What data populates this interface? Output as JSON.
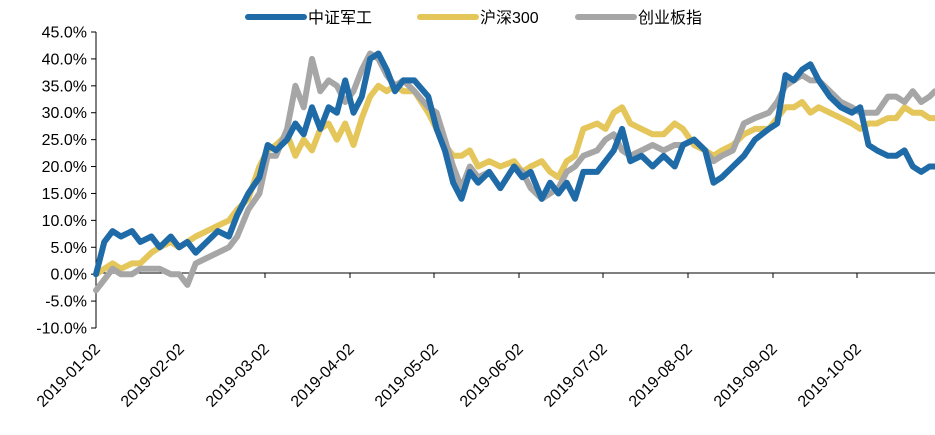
{
  "chart_data": {
    "type": "line",
    "title": "",
    "xlabel": "",
    "ylabel": "",
    "x_tick_labels": [
      "2019-01-02",
      "2019-02-02",
      "2019-03-02",
      "2019-04-02",
      "2019-05-02",
      "2019-06-02",
      "2019-07-02",
      "2019-08-02",
      "2019-09-02",
      "2019-10-02"
    ],
    "y_tick_labels": [
      "45.0%",
      "40.0%",
      "35.0%",
      "30.0%",
      "25.0%",
      "20.0%",
      "15.0%",
      "10.0%",
      "5.0%",
      "0.0%",
      "-5.0%",
      "-10.0%"
    ],
    "ylim": [
      -10,
      45
    ],
    "y_unit": "%",
    "grid": false,
    "legend_position": "top-center",
    "series": [
      {
        "name": "中证军工",
        "color": "#1F6BA8",
        "points": [
          [
            "2019-01-02",
            0
          ],
          [
            "2019-01-05",
            6
          ],
          [
            "2019-01-08",
            8
          ],
          [
            "2019-01-11",
            7
          ],
          [
            "2019-01-15",
            8
          ],
          [
            "2019-01-18",
            6
          ],
          [
            "2019-01-22",
            7
          ],
          [
            "2019-01-25",
            5
          ],
          [
            "2019-01-29",
            7
          ],
          [
            "2019-02-01",
            5
          ],
          [
            "2019-02-04",
            6
          ],
          [
            "2019-02-07",
            4
          ],
          [
            "2019-02-11",
            6
          ],
          [
            "2019-02-15",
            8
          ],
          [
            "2019-02-19",
            7
          ],
          [
            "2019-02-22",
            11
          ],
          [
            "2019-02-26",
            15
          ],
          [
            "2019-03-02",
            18
          ],
          [
            "2019-03-05",
            24
          ],
          [
            "2019-03-08",
            23
          ],
          [
            "2019-03-12",
            25
          ],
          [
            "2019-03-15",
            28
          ],
          [
            "2019-03-18",
            26
          ],
          [
            "2019-03-21",
            31
          ],
          [
            "2019-03-24",
            27
          ],
          [
            "2019-03-27",
            31
          ],
          [
            "2019-03-30",
            30
          ],
          [
            "2019-04-02",
            36
          ],
          [
            "2019-04-05",
            30
          ],
          [
            "2019-04-08",
            33
          ],
          [
            "2019-04-11",
            40
          ],
          [
            "2019-04-14",
            41
          ],
          [
            "2019-04-17",
            38
          ],
          [
            "2019-04-20",
            34
          ],
          [
            "2019-04-23",
            36
          ],
          [
            "2019-04-27",
            36
          ],
          [
            "2019-05-02",
            33
          ],
          [
            "2019-05-05",
            27
          ],
          [
            "2019-05-08",
            23
          ],
          [
            "2019-05-11",
            17
          ],
          [
            "2019-05-14",
            14
          ],
          [
            "2019-05-17",
            19
          ],
          [
            "2019-05-20",
            17
          ],
          [
            "2019-05-24",
            19
          ],
          [
            "2019-05-28",
            16
          ],
          [
            "2019-06-02",
            20
          ],
          [
            "2019-06-05",
            18
          ],
          [
            "2019-06-08",
            19
          ],
          [
            "2019-06-12",
            14
          ],
          [
            "2019-06-15",
            17
          ],
          [
            "2019-06-18",
            15
          ],
          [
            "2019-06-21",
            17
          ],
          [
            "2019-06-24",
            14
          ],
          [
            "2019-06-27",
            19
          ],
          [
            "2019-07-02",
            19
          ],
          [
            "2019-07-05",
            21
          ],
          [
            "2019-07-08",
            23
          ],
          [
            "2019-07-11",
            27
          ],
          [
            "2019-07-14",
            21
          ],
          [
            "2019-07-18",
            22
          ],
          [
            "2019-07-22",
            20
          ],
          [
            "2019-07-26",
            22
          ],
          [
            "2019-07-30",
            20
          ],
          [
            "2019-08-02",
            24
          ],
          [
            "2019-08-06",
            25
          ],
          [
            "2019-08-10",
            23
          ],
          [
            "2019-08-13",
            17
          ],
          [
            "2019-08-16",
            18
          ],
          [
            "2019-08-20",
            20
          ],
          [
            "2019-08-24",
            22
          ],
          [
            "2019-08-28",
            25
          ],
          [
            "2019-09-02",
            27
          ],
          [
            "2019-09-05",
            28
          ],
          [
            "2019-09-08",
            37
          ],
          [
            "2019-09-11",
            36
          ],
          [
            "2019-09-14",
            38
          ],
          [
            "2019-09-17",
            39
          ],
          [
            "2019-09-20",
            36
          ],
          [
            "2019-09-24",
            33
          ],
          [
            "2019-09-28",
            31
          ],
          [
            "2019-10-02",
            30
          ],
          [
            "2019-10-05",
            31
          ],
          [
            "2019-10-08",
            24
          ],
          [
            "2019-10-11",
            23
          ],
          [
            "2019-10-15",
            22
          ],
          [
            "2019-10-18",
            22
          ],
          [
            "2019-10-21",
            23
          ],
          [
            "2019-10-24",
            20
          ],
          [
            "2019-10-27",
            19
          ],
          [
            "2019-10-30",
            20
          ],
          [
            "2019-11-01",
            20
          ]
        ]
      },
      {
        "name": "沪深300",
        "color": "#E4C65B",
        "points": [
          [
            "2019-01-02",
            0
          ],
          [
            "2019-01-05",
            1
          ],
          [
            "2019-01-08",
            2
          ],
          [
            "2019-01-11",
            1
          ],
          [
            "2019-01-15",
            2
          ],
          [
            "2019-01-18",
            2
          ],
          [
            "2019-01-22",
            4
          ],
          [
            "2019-01-25",
            5
          ],
          [
            "2019-01-29",
            6
          ],
          [
            "2019-02-01",
            5
          ],
          [
            "2019-02-04",
            6
          ],
          [
            "2019-02-07",
            7
          ],
          [
            "2019-02-11",
            8
          ],
          [
            "2019-02-15",
            9
          ],
          [
            "2019-02-19",
            10
          ],
          [
            "2019-02-22",
            12
          ],
          [
            "2019-02-26",
            14
          ],
          [
            "2019-03-02",
            20
          ],
          [
            "2019-03-05",
            23
          ],
          [
            "2019-03-08",
            24
          ],
          [
            "2019-03-12",
            26
          ],
          [
            "2019-03-15",
            22
          ],
          [
            "2019-03-18",
            25
          ],
          [
            "2019-03-21",
            23
          ],
          [
            "2019-03-24",
            27
          ],
          [
            "2019-03-27",
            28
          ],
          [
            "2019-03-30",
            25
          ],
          [
            "2019-04-02",
            28
          ],
          [
            "2019-04-05",
            24
          ],
          [
            "2019-04-08",
            29
          ],
          [
            "2019-04-11",
            33
          ],
          [
            "2019-04-14",
            35
          ],
          [
            "2019-04-17",
            34
          ],
          [
            "2019-04-20",
            35
          ],
          [
            "2019-04-23",
            34
          ],
          [
            "2019-04-27",
            34
          ],
          [
            "2019-05-02",
            30
          ],
          [
            "2019-05-05",
            27
          ],
          [
            "2019-05-08",
            24
          ],
          [
            "2019-05-11",
            22
          ],
          [
            "2019-05-14",
            22
          ],
          [
            "2019-05-17",
            23
          ],
          [
            "2019-05-20",
            20
          ],
          [
            "2019-05-24",
            21
          ],
          [
            "2019-05-28",
            20
          ],
          [
            "2019-06-02",
            21
          ],
          [
            "2019-06-05",
            19
          ],
          [
            "2019-06-08",
            20
          ],
          [
            "2019-06-12",
            21
          ],
          [
            "2019-06-15",
            19
          ],
          [
            "2019-06-18",
            18
          ],
          [
            "2019-06-21",
            21
          ],
          [
            "2019-06-24",
            22
          ],
          [
            "2019-06-27",
            27
          ],
          [
            "2019-07-02",
            28
          ],
          [
            "2019-07-05",
            27
          ],
          [
            "2019-07-08",
            30
          ],
          [
            "2019-07-11",
            31
          ],
          [
            "2019-07-14",
            28
          ],
          [
            "2019-07-18",
            27
          ],
          [
            "2019-07-22",
            26
          ],
          [
            "2019-07-26",
            26
          ],
          [
            "2019-07-30",
            28
          ],
          [
            "2019-08-02",
            27
          ],
          [
            "2019-08-06",
            24
          ],
          [
            "2019-08-10",
            23
          ],
          [
            "2019-08-13",
            22
          ],
          [
            "2019-08-16",
            23
          ],
          [
            "2019-08-20",
            24
          ],
          [
            "2019-08-24",
            26
          ],
          [
            "2019-08-28",
            27
          ],
          [
            "2019-09-02",
            27
          ],
          [
            "2019-09-05",
            29
          ],
          [
            "2019-09-08",
            31
          ],
          [
            "2019-09-11",
            31
          ],
          [
            "2019-09-14",
            32
          ],
          [
            "2019-09-17",
            30
          ],
          [
            "2019-09-20",
            31
          ],
          [
            "2019-09-24",
            30
          ],
          [
            "2019-09-28",
            29
          ],
          [
            "2019-10-02",
            28
          ],
          [
            "2019-10-05",
            27
          ],
          [
            "2019-10-08",
            28
          ],
          [
            "2019-10-11",
            28
          ],
          [
            "2019-10-15",
            29
          ],
          [
            "2019-10-18",
            29
          ],
          [
            "2019-10-21",
            31
          ],
          [
            "2019-10-24",
            30
          ],
          [
            "2019-10-27",
            30
          ],
          [
            "2019-10-30",
            29
          ],
          [
            "2019-11-01",
            29
          ]
        ]
      },
      {
        "name": "创业板指",
        "color": "#A6A6A6",
        "points": [
          [
            "2019-01-02",
            -3
          ],
          [
            "2019-01-05",
            -1
          ],
          [
            "2019-01-08",
            1
          ],
          [
            "2019-01-11",
            0
          ],
          [
            "2019-01-15",
            0
          ],
          [
            "2019-01-18",
            1
          ],
          [
            "2019-01-22",
            1
          ],
          [
            "2019-01-25",
            1
          ],
          [
            "2019-01-29",
            0
          ],
          [
            "2019-02-01",
            0
          ],
          [
            "2019-02-04",
            -2
          ],
          [
            "2019-02-07",
            2
          ],
          [
            "2019-02-11",
            3
          ],
          [
            "2019-02-15",
            4
          ],
          [
            "2019-02-19",
            5
          ],
          [
            "2019-02-22",
            7
          ],
          [
            "2019-02-26",
            12
          ],
          [
            "2019-03-02",
            15
          ],
          [
            "2019-03-05",
            22
          ],
          [
            "2019-03-08",
            22
          ],
          [
            "2019-03-12",
            27
          ],
          [
            "2019-03-15",
            35
          ],
          [
            "2019-03-18",
            31
          ],
          [
            "2019-03-21",
            40
          ],
          [
            "2019-03-24",
            34
          ],
          [
            "2019-03-27",
            36
          ],
          [
            "2019-03-30",
            35
          ],
          [
            "2019-04-02",
            32
          ],
          [
            "2019-04-05",
            34
          ],
          [
            "2019-04-08",
            38
          ],
          [
            "2019-04-11",
            41
          ],
          [
            "2019-04-14",
            40
          ],
          [
            "2019-04-17",
            37
          ],
          [
            "2019-04-20",
            35
          ],
          [
            "2019-04-23",
            36
          ],
          [
            "2019-04-27",
            34
          ],
          [
            "2019-05-02",
            31
          ],
          [
            "2019-05-05",
            30
          ],
          [
            "2019-05-08",
            25
          ],
          [
            "2019-05-11",
            20
          ],
          [
            "2019-05-14",
            16
          ],
          [
            "2019-05-17",
            20
          ],
          [
            "2019-05-20",
            18
          ],
          [
            "2019-05-24",
            19
          ],
          [
            "2019-05-28",
            16
          ],
          [
            "2019-06-02",
            20
          ],
          [
            "2019-06-05",
            19
          ],
          [
            "2019-06-08",
            16
          ],
          [
            "2019-06-12",
            14
          ],
          [
            "2019-06-15",
            15
          ],
          [
            "2019-06-18",
            16
          ],
          [
            "2019-06-21",
            19
          ],
          [
            "2019-06-24",
            20
          ],
          [
            "2019-06-27",
            22
          ],
          [
            "2019-07-02",
            23
          ],
          [
            "2019-07-05",
            25
          ],
          [
            "2019-07-08",
            26
          ],
          [
            "2019-07-11",
            23
          ],
          [
            "2019-07-14",
            22
          ],
          [
            "2019-07-18",
            23
          ],
          [
            "2019-07-22",
            24
          ],
          [
            "2019-07-26",
            23
          ],
          [
            "2019-07-30",
            24
          ],
          [
            "2019-08-02",
            24
          ],
          [
            "2019-08-06",
            25
          ],
          [
            "2019-08-10",
            23
          ],
          [
            "2019-08-13",
            21
          ],
          [
            "2019-08-16",
            22
          ],
          [
            "2019-08-20",
            23
          ],
          [
            "2019-08-24",
            28
          ],
          [
            "2019-08-28",
            29
          ],
          [
            "2019-09-02",
            30
          ],
          [
            "2019-09-05",
            32
          ],
          [
            "2019-09-08",
            35
          ],
          [
            "2019-09-11",
            36
          ],
          [
            "2019-09-14",
            37
          ],
          [
            "2019-09-17",
            36
          ],
          [
            "2019-09-20",
            36
          ],
          [
            "2019-09-24",
            34
          ],
          [
            "2019-09-28",
            32
          ],
          [
            "2019-10-02",
            31
          ],
          [
            "2019-10-05",
            30
          ],
          [
            "2019-10-08",
            30
          ],
          [
            "2019-10-11",
            30
          ],
          [
            "2019-10-15",
            33
          ],
          [
            "2019-10-18",
            33
          ],
          [
            "2019-10-21",
            32
          ],
          [
            "2019-10-24",
            34
          ],
          [
            "2019-10-27",
            32
          ],
          [
            "2019-10-30",
            33
          ],
          [
            "2019-11-01",
            34
          ]
        ]
      }
    ]
  }
}
